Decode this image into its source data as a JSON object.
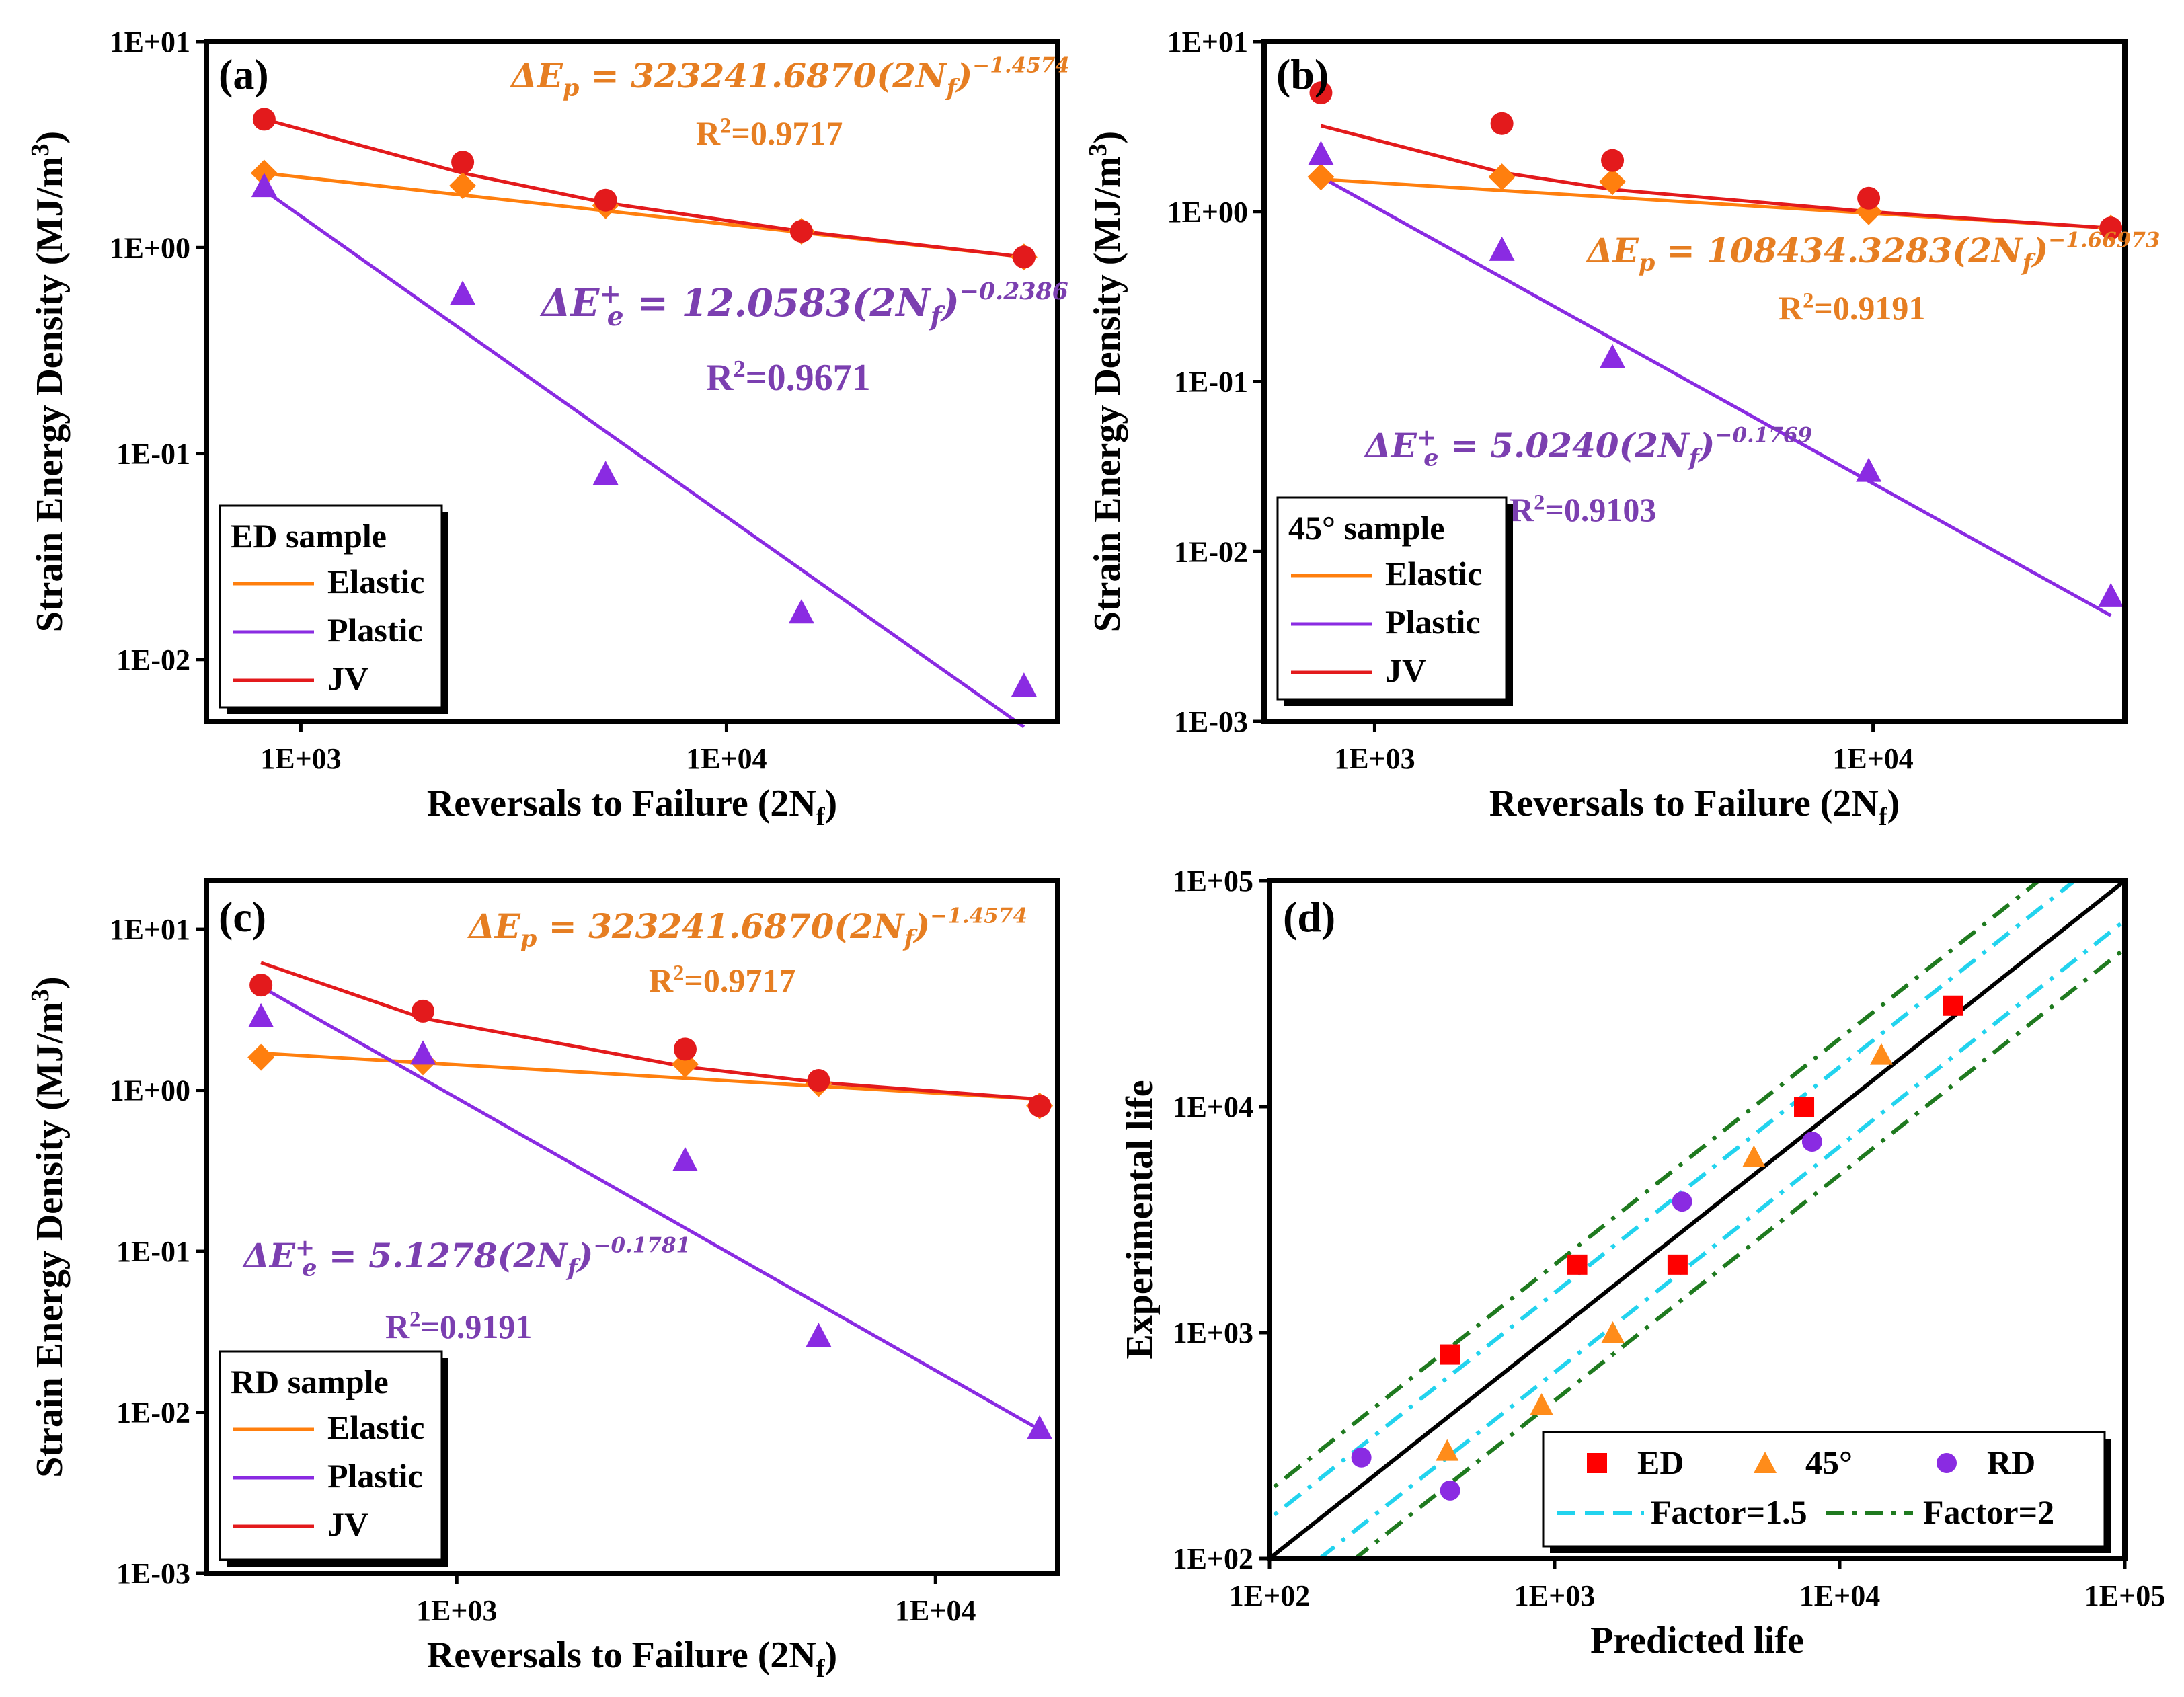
{
  "colors": {
    "elastic": "#ff7f0e",
    "plastic": "#8a2be2",
    "jv": "#e31a1c",
    "ed_marker": "#ff0000",
    "d45_marker": "#ff8c1a",
    "rd_marker": "#8a2be2",
    "factor15": "#22d3ee",
    "factor2": "#1f7a1f",
    "equation_orange": "#e67e22",
    "equation_purple": "#7b3fb0"
  },
  "chart_data": [
    {
      "panel": "(a)",
      "type": "scatter",
      "xlabel": "Reversals to Failure (2N",
      "xlabel_sub": "f",
      "xlabel_close": ")",
      "ylabel": "Strain Energy Density (MJ/m",
      "ylabel_sup": "3",
      "ylabel_close": ")",
      "x_scale": "log",
      "y_scale": "log",
      "xlim": [
        600,
        60000
      ],
      "ylim": [
        0.005,
        10
      ],
      "x_ticks": [
        {
          "v": 1000,
          "label": "1E+03"
        },
        {
          "v": 10000,
          "label": "1E+04"
        }
      ],
      "y_ticks": [
        {
          "v": 10,
          "label": "1E+01"
        },
        {
          "v": 1,
          "label": "1E+00"
        },
        {
          "v": 0.1,
          "label": "1E-01"
        },
        {
          "v": 0.01,
          "label": "1E-02"
        }
      ],
      "legend_title": "ED sample",
      "legend_entries": [
        "Elastic",
        "Plastic",
        "JV"
      ],
      "legend_position": "bottom-left",
      "series": [
        {
          "name": "Elastic",
          "points": [
            [
              820,
              2.3
            ],
            [
              2400,
              2.0
            ],
            [
              5200,
              1.6
            ],
            [
              15000,
              1.2
            ],
            [
              50000,
              0.9
            ]
          ],
          "fit": [
            [
              820,
              2.3
            ],
            [
              50000,
              0.9
            ]
          ]
        },
        {
          "name": "Plastic",
          "points": [
            [
              820,
              2.0
            ],
            [
              2400,
              0.6
            ],
            [
              5200,
              0.08
            ],
            [
              15000,
              0.017
            ],
            [
              50000,
              0.0075
            ]
          ],
          "fit": [
            [
              820,
              1.9
            ],
            [
              50000,
              0.0047
            ]
          ]
        },
        {
          "name": "JV",
          "points": [
            [
              820,
              4.2
            ],
            [
              2400,
              2.6
            ],
            [
              5200,
              1.7
            ],
            [
              15000,
              1.2
            ],
            [
              50000,
              0.9
            ]
          ],
          "fit": [
            [
              820,
              4.2
            ],
            [
              2400,
              2.3
            ],
            [
              5200,
              1.65
            ],
            [
              15000,
              1.2
            ],
            [
              50000,
              0.9
            ]
          ]
        }
      ],
      "annotations": {
        "elastic_eq": "ΔE_p = 323241.6870(2N_f)^−1.4574",
        "elastic_r2": "R²=0.9717",
        "plastic_eq": "ΔE_e⁺ = 12.0583(2N_f)^−0.2386",
        "plastic_r2": "R²=0.9671"
      }
    },
    {
      "panel": "(b)",
      "type": "scatter",
      "xlabel": "Reversals to Failure (2N",
      "xlabel_sub": "f",
      "xlabel_close": ")",
      "ylabel": "Strain Energy Density (MJ/m",
      "ylabel_sup": "3",
      "ylabel_close": ")",
      "x_scale": "log",
      "y_scale": "log",
      "xlim": [
        600,
        32000
      ],
      "ylim": [
        0.001,
        10
      ],
      "x_ticks": [
        {
          "v": 1000,
          "label": "1E+03"
        },
        {
          "v": 10000,
          "label": "1E+04"
        }
      ],
      "y_ticks": [
        {
          "v": 10,
          "label": "1E+01"
        },
        {
          "v": 1,
          "label": "1E+00"
        },
        {
          "v": 0.1,
          "label": "1E-01"
        },
        {
          "v": 0.01,
          "label": "1E-02"
        },
        {
          "v": 0.001,
          "label": "1E-03"
        }
      ],
      "legend_title": "45° sample",
      "legend_entries": [
        "Elastic",
        "Plastic",
        "JV"
      ],
      "legend_position": "bottom-left",
      "series": [
        {
          "name": "Elastic",
          "points": [
            [
              780,
              1.6
            ],
            [
              1800,
              1.6
            ],
            [
              3000,
              1.5
            ],
            [
              9800,
              1.0
            ],
            [
              30000,
              0.8
            ]
          ],
          "fit": [
            [
              780,
              1.55
            ],
            [
              30000,
              0.8
            ]
          ]
        },
        {
          "name": "Plastic",
          "points": [
            [
              780,
              2.2
            ],
            [
              1800,
              0.6
            ],
            [
              3000,
              0.14
            ],
            [
              9800,
              0.03
            ],
            [
              30000,
              0.0055
            ]
          ],
          "fit": [
            [
              780,
              1.6
            ],
            [
              30000,
              0.0042
            ]
          ]
        },
        {
          "name": "JV",
          "points": [
            [
              780,
              5.0
            ],
            [
              1800,
              3.3
            ],
            [
              3000,
              2.0
            ],
            [
              9800,
              1.2
            ],
            [
              30000,
              0.8
            ]
          ],
          "fit": [
            [
              780,
              3.2
            ],
            [
              1800,
              1.7
            ],
            [
              3000,
              1.35
            ],
            [
              9800,
              1.0
            ],
            [
              30000,
              0.8
            ]
          ]
        }
      ],
      "annotations": {
        "elastic_eq": "ΔE_p = 108434.3283(2N_f)^−1.66973",
        "elastic_r2": "R²=0.9191",
        "plastic_eq": "ΔE_e⁺ = 5.0240(2N_f)^−0.1769",
        "plastic_r2": "R²=0.9103"
      }
    },
    {
      "panel": "(c)",
      "type": "scatter",
      "xlabel": "Reversals to Failure (2N",
      "xlabel_sub": "f",
      "xlabel_close": ")",
      "ylabel": "Strain Energy Density (MJ/m",
      "ylabel_sup": "3",
      "ylabel_close": ")",
      "x_scale": "log",
      "y_scale": "log",
      "xlim": [
        300,
        18000
      ],
      "ylim": [
        0.001,
        20
      ],
      "x_ticks": [
        {
          "v": 1000,
          "label": "1E+03"
        },
        {
          "v": 10000,
          "label": "1E+04"
        }
      ],
      "y_ticks": [
        {
          "v": 10,
          "label": "1E+01"
        },
        {
          "v": 1,
          "label": "1E+00"
        },
        {
          "v": 0.1,
          "label": "1E-01"
        },
        {
          "v": 0.01,
          "label": "1E-02"
        },
        {
          "v": 0.001,
          "label": "1E-03"
        }
      ],
      "legend_title": "RD sample",
      "legend_entries": [
        "Elastic",
        "Plastic",
        "JV"
      ],
      "legend_position": "bottom-left",
      "series": [
        {
          "name": "Elastic",
          "points": [
            [
              390,
              1.6
            ],
            [
              850,
              1.5
            ],
            [
              3000,
              1.45
            ],
            [
              5700,
              1.1
            ],
            [
              16500,
              0.8
            ]
          ],
          "fit": [
            [
              390,
              1.7
            ],
            [
              16500,
              0.88
            ]
          ]
        },
        {
          "name": "Plastic",
          "points": [
            [
              390,
              2.9
            ],
            [
              850,
              1.7
            ],
            [
              3000,
              0.37
            ],
            [
              5700,
              0.03
            ],
            [
              16500,
              0.008
            ]
          ],
          "fit": [
            [
              390,
              4.4
            ],
            [
              16500,
              0.0078
            ]
          ]
        },
        {
          "name": "JV",
          "points": [
            [
              390,
              4.5
            ],
            [
              850,
              3.1
            ],
            [
              3000,
              1.8
            ],
            [
              5700,
              1.15
            ],
            [
              16500,
              0.8
            ]
          ],
          "fit": [
            [
              390,
              6.2
            ],
            [
              850,
              2.8
            ],
            [
              3000,
              1.4
            ],
            [
              5700,
              1.12
            ],
            [
              16500,
              0.88
            ]
          ]
        }
      ],
      "annotations": {
        "elastic_eq": "ΔE_p = 323241.6870(2N_f)^−1.4574",
        "elastic_r2": "R²=0.9717",
        "plastic_eq": "ΔE_e⁺ = 5.1278(2N_f)^−0.1781",
        "plastic_r2": "R²=0.9191"
      }
    },
    {
      "panel": "(d)",
      "type": "scatter",
      "xlabel": "Predicted life",
      "ylabel": "Experimental life",
      "x_scale": "log",
      "y_scale": "log",
      "xlim": [
        100,
        100000
      ],
      "ylim": [
        100,
        100000
      ],
      "x_ticks": [
        {
          "v": 100,
          "label": "1E+02"
        },
        {
          "v": 1000,
          "label": "1E+03"
        },
        {
          "v": 10000,
          "label": "1E+04"
        },
        {
          "v": 100000,
          "label": "1E+05"
        }
      ],
      "y_ticks": [
        {
          "v": 100,
          "label": "1E+02"
        },
        {
          "v": 1000,
          "label": "1E+03"
        },
        {
          "v": 10000,
          "label": "1E+04"
        },
        {
          "v": 100000,
          "label": "1E+05"
        }
      ],
      "legend_entries": [
        "ED",
        "45°",
        "RD",
        "Factor=1.5",
        "Factor=2"
      ],
      "legend_position": "bottom-right",
      "series": [
        {
          "name": "ED",
          "points": [
            [
              430,
              800
            ],
            [
              1200,
              2000
            ],
            [
              2700,
              2000
            ],
            [
              7500,
              10000
            ],
            [
              25000,
              28000
            ]
          ]
        },
        {
          "name": "45°",
          "points": [
            [
              420,
              300
            ],
            [
              900,
              480
            ],
            [
              1600,
              1000
            ],
            [
              5000,
              6000
            ],
            [
              14000,
              17000
            ]
          ]
        },
        {
          "name": "RD",
          "points": [
            [
              210,
              280
            ],
            [
              430,
              200
            ],
            [
              2800,
              3800
            ],
            [
              8000,
              7000
            ]
          ]
        }
      ],
      "reference_lines": {
        "identity": 1,
        "factor_15": 1.5,
        "factor_2": 2
      }
    }
  ]
}
